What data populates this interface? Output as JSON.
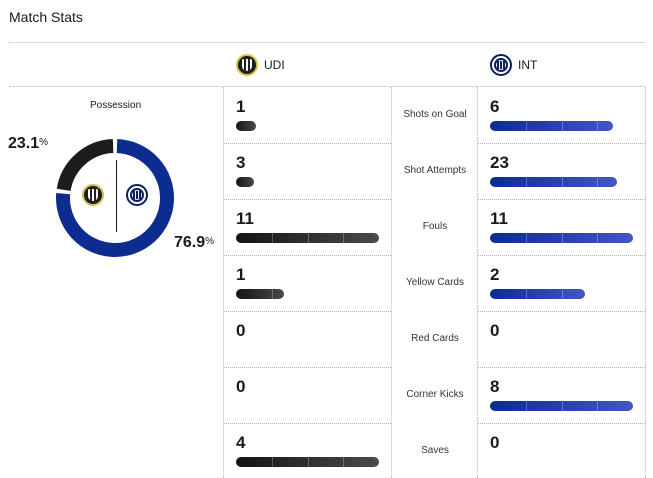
{
  "title": "Match Stats",
  "teams": {
    "home": {
      "abbr": "UDI",
      "badge": "udinese-crest-icon",
      "color": "#1d1d1d"
    },
    "away": {
      "abbr": "INT",
      "badge": "inter-crest-icon",
      "color": "#0d2c8f"
    }
  },
  "possession": {
    "label": "Possession",
    "home_value": "23.1",
    "away_value": "76.9",
    "unit": "%",
    "home_fraction": 0.231,
    "away_fraction": 0.769
  },
  "stats": [
    {
      "label": "Shots on Goal",
      "home": "1",
      "away": "6"
    },
    {
      "label": "Shot Attempts",
      "home": "3",
      "away": "23"
    },
    {
      "label": "Fouls",
      "home": "11",
      "away": "11"
    },
    {
      "label": "Yellow Cards",
      "home": "1",
      "away": "2"
    },
    {
      "label": "Red Cards",
      "home": "0",
      "away": "0"
    },
    {
      "label": "Corner Kicks",
      "home": "0",
      "away": "8"
    },
    {
      "label": "Saves",
      "home": "4",
      "away": "0"
    }
  ]
}
